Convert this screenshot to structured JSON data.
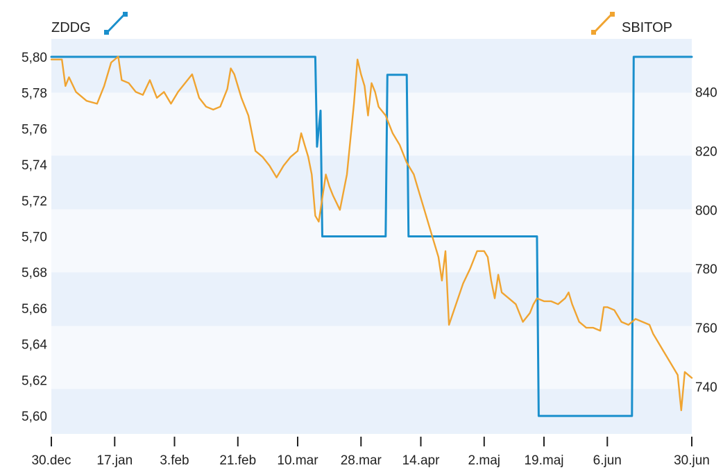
{
  "chart_data": {
    "type": "line",
    "legend": [
      {
        "name": "ZDDG",
        "color": "#1a8fcc",
        "axis": "left",
        "icon": "line-chart-icon"
      },
      {
        "name": "SBITOP",
        "color": "#f0a431",
        "axis": "right",
        "icon": "line-chart-icon"
      }
    ],
    "x_tick_labels": [
      "30.dec",
      "17.jan",
      "3.feb",
      "21.feb",
      "10.mar",
      "28.mar",
      "14.apr",
      "2.maj",
      "19.maj",
      "6.jun",
      "30.jun"
    ],
    "x_tick_days": [
      0,
      18,
      35,
      53,
      70,
      88,
      105,
      123,
      140,
      158,
      182
    ],
    "x_range_days": [
      0,
      182
    ],
    "y_left": {
      "range": [
        5.59,
        5.81
      ],
      "tick_labels": [
        "5,80",
        "5,78",
        "5,76",
        "5,74",
        "5,72",
        "5,70",
        "5,68",
        "5,66",
        "5,64",
        "5,62",
        "5,60"
      ],
      "ticks": [
        5.8,
        5.78,
        5.76,
        5.74,
        5.72,
        5.7,
        5.68,
        5.66,
        5.64,
        5.62,
        5.6
      ]
    },
    "y_right": {
      "range": [
        724,
        858
      ],
      "tick_labels": [
        "840",
        "820",
        "800",
        "780",
        "760",
        "740"
      ],
      "ticks": [
        840,
        820,
        800,
        780,
        760,
        740
      ]
    },
    "grid": "horizontal-bands",
    "series": [
      {
        "name": "ZDDG",
        "axis": "left",
        "color": "#1a8fcc",
        "step": true,
        "points": [
          [
            0,
            5.8
          ],
          [
            75,
            5.8
          ],
          [
            75.5,
            5.75
          ],
          [
            76.5,
            5.77
          ],
          [
            77,
            5.7
          ],
          [
            95,
            5.7
          ],
          [
            95.5,
            5.79
          ],
          [
            101,
            5.79
          ],
          [
            101.5,
            5.7
          ],
          [
            138,
            5.7
          ],
          [
            138.5,
            5.6
          ],
          [
            165,
            5.6
          ],
          [
            165.5,
            5.8
          ],
          [
            182,
            5.8
          ]
        ]
      },
      {
        "name": "SBITOP",
        "axis": "right",
        "color": "#f0a431",
        "points": [
          [
            0,
            851
          ],
          [
            3,
            851
          ],
          [
            4,
            842
          ],
          [
            5,
            845
          ],
          [
            7,
            840
          ],
          [
            10,
            837
          ],
          [
            13,
            836
          ],
          [
            15,
            842
          ],
          [
            17,
            850
          ],
          [
            19,
            852
          ],
          [
            20,
            844
          ],
          [
            22,
            843
          ],
          [
            24,
            840
          ],
          [
            26,
            839
          ],
          [
            28,
            844
          ],
          [
            30,
            838
          ],
          [
            32,
            840
          ],
          [
            34,
            836
          ],
          [
            36,
            840
          ],
          [
            38,
            843
          ],
          [
            40,
            846
          ],
          [
            42,
            838
          ],
          [
            44,
            835
          ],
          [
            46,
            834
          ],
          [
            48,
            835
          ],
          [
            50,
            841
          ],
          [
            51,
            848
          ],
          [
            52,
            846
          ],
          [
            54,
            838
          ],
          [
            56,
            832
          ],
          [
            58,
            820
          ],
          [
            60,
            818
          ],
          [
            62,
            815
          ],
          [
            64,
            811
          ],
          [
            66,
            815
          ],
          [
            68,
            818
          ],
          [
            70,
            820
          ],
          [
            71,
            826
          ],
          [
            72,
            822
          ],
          [
            73,
            818
          ],
          [
            74,
            812
          ],
          [
            75,
            798
          ],
          [
            76,
            796
          ],
          [
            77,
            804
          ],
          [
            78,
            812
          ],
          [
            79,
            808
          ],
          [
            80,
            805
          ],
          [
            82,
            800
          ],
          [
            84,
            812
          ],
          [
            86,
            836
          ],
          [
            87,
            851
          ],
          [
            88,
            846
          ],
          [
            89,
            842
          ],
          [
            90,
            832
          ],
          [
            91,
            843
          ],
          [
            92,
            840
          ],
          [
            93,
            835
          ],
          [
            95,
            832
          ],
          [
            97,
            826
          ],
          [
            99,
            822
          ],
          [
            101,
            816
          ],
          [
            103,
            812
          ],
          [
            104,
            808
          ],
          [
            106,
            800
          ],
          [
            108,
            792
          ],
          [
            110,
            784
          ],
          [
            111,
            776
          ],
          [
            112,
            786
          ],
          [
            113,
            761
          ],
          [
            115,
            768
          ],
          [
            117,
            775
          ],
          [
            119,
            780
          ],
          [
            121,
            786
          ],
          [
            123,
            786
          ],
          [
            124,
            784
          ],
          [
            125,
            776
          ],
          [
            126,
            770
          ],
          [
            127,
            778
          ],
          [
            128,
            772
          ],
          [
            130,
            770
          ],
          [
            132,
            768
          ],
          [
            134,
            762
          ],
          [
            136,
            765
          ],
          [
            137,
            768
          ],
          [
            138,
            770
          ],
          [
            140,
            769
          ],
          [
            142,
            769
          ],
          [
            144,
            768
          ],
          [
            146,
            770
          ],
          [
            147,
            772
          ],
          [
            148,
            768
          ],
          [
            150,
            762
          ],
          [
            152,
            760
          ],
          [
            154,
            760
          ],
          [
            156,
            759
          ],
          [
            157,
            767
          ],
          [
            158,
            767
          ],
          [
            160,
            766
          ],
          [
            162,
            762
          ],
          [
            164,
            761
          ],
          [
            166,
            763
          ],
          [
            168,
            762
          ],
          [
            170,
            761
          ],
          [
            171,
            758
          ],
          [
            172,
            756
          ],
          [
            174,
            752
          ],
          [
            176,
            748
          ],
          [
            178,
            744
          ],
          [
            179,
            732
          ],
          [
            180,
            745
          ],
          [
            182,
            743
          ]
        ]
      }
    ]
  }
}
